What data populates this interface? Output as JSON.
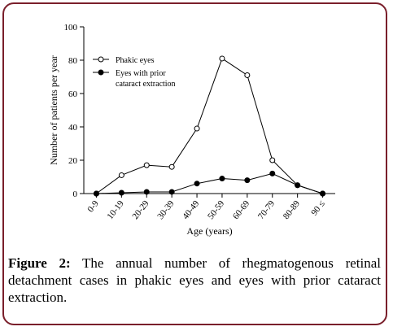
{
  "caption": {
    "label": "Figure 2:",
    "text": "The annual number of rhegmatogenous retinal detachment cases in phakic eyes and eyes with prior cataract extraction."
  },
  "chart_data": {
    "type": "line",
    "categories": [
      "0-9",
      "10-19",
      "20-29",
      "30-39",
      "40-49",
      "50-59",
      "60-69",
      "70-79",
      "80-89",
      "90 ≤"
    ],
    "series": [
      {
        "name": "Phakic eyes",
        "marker": "open-circle",
        "values": [
          0,
          11,
          17,
          16,
          39,
          81,
          71,
          20,
          5,
          0
        ]
      },
      {
        "name": "Eyes with prior cataract extraction",
        "marker": "filled-circle",
        "values": [
          0,
          0.5,
          1,
          1,
          6,
          9,
          8,
          12,
          5,
          0
        ]
      }
    ],
    "xlabel": "Age (years)",
    "ylabel": "Number of patients per year",
    "ylim": [
      0,
      100
    ],
    "yticks": [
      0,
      20,
      40,
      60,
      80,
      100
    ],
    "legend": {
      "position": "top-left",
      "entries": [
        {
          "series": 0,
          "lines": [
            "Phakic eyes"
          ]
        },
        {
          "series": 1,
          "lines": [
            "Eyes with prior",
            "cataract extraction"
          ]
        }
      ]
    },
    "grid": false
  },
  "colors": {
    "frame": "#7a1f2b",
    "line": "#000000"
  }
}
